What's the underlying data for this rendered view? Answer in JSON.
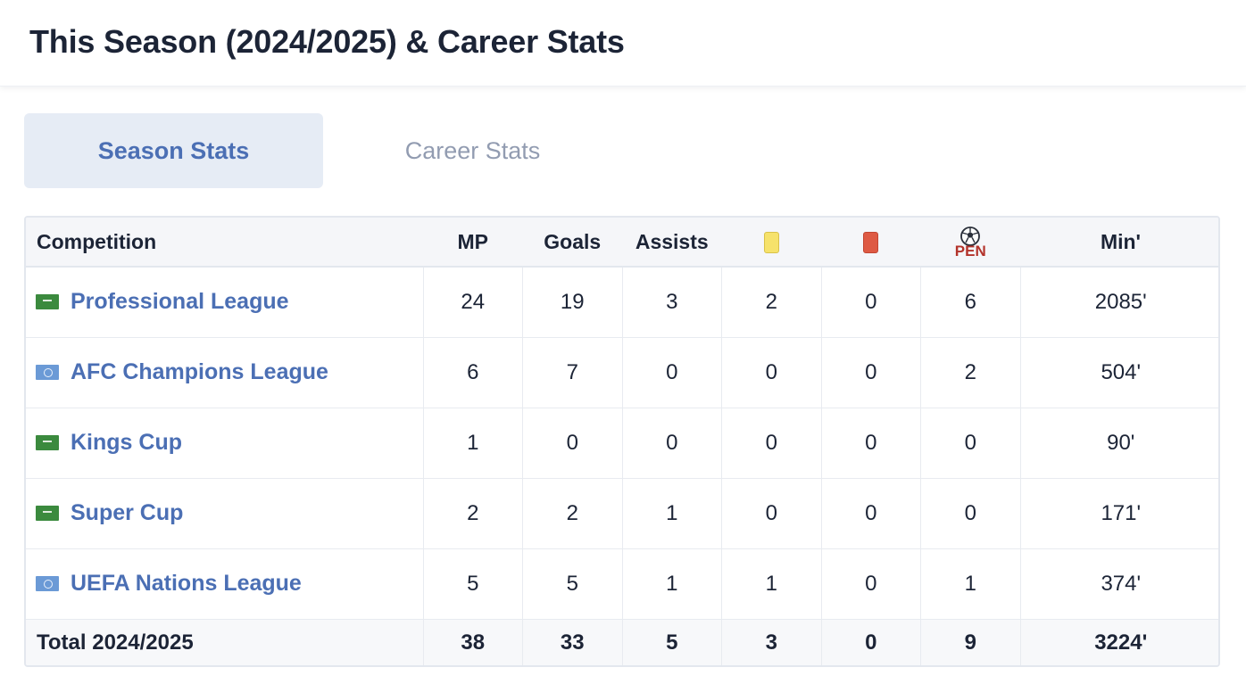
{
  "header": {
    "title": "This Season (2024/2025) & Career Stats"
  },
  "tabs": [
    {
      "label": "Season Stats",
      "active": true
    },
    {
      "label": "Career Stats",
      "active": false
    }
  ],
  "table": {
    "columns": {
      "competition": "Competition",
      "mp": "MP",
      "goals": "Goals",
      "assists": "Assists",
      "yellow_icon": "yellow-card-icon",
      "red_icon": "red-card-icon",
      "pen_icon": "penalty-ball-icon",
      "pen_label": "PEN",
      "minutes": "Min'"
    },
    "rows": [
      {
        "flag": "saudi-flag-icon",
        "competition": "Professional League",
        "mp": "24",
        "goals": "19",
        "assists": "3",
        "yellow": "2",
        "red": "0",
        "pen": "6",
        "minutes": "2085'"
      },
      {
        "flag": "un-flag-icon",
        "competition": "AFC Champions League",
        "mp": "6",
        "goals": "7",
        "assists": "0",
        "yellow": "0",
        "red": "0",
        "pen": "2",
        "minutes": "504'"
      },
      {
        "flag": "saudi-flag-icon",
        "competition": "Kings Cup",
        "mp": "1",
        "goals": "0",
        "assists": "0",
        "yellow": "0",
        "red": "0",
        "pen": "0",
        "minutes": "90'"
      },
      {
        "flag": "saudi-flag-icon",
        "competition": "Super Cup",
        "mp": "2",
        "goals": "2",
        "assists": "1",
        "yellow": "0",
        "red": "0",
        "pen": "0",
        "minutes": "171'"
      },
      {
        "flag": "un-flag-icon",
        "competition": "UEFA Nations League",
        "mp": "5",
        "goals": "5",
        "assists": "1",
        "yellow": "1",
        "red": "0",
        "pen": "1",
        "minutes": "374'"
      }
    ],
    "total": {
      "label": "Total 2024/2025",
      "mp": "38",
      "goals": "33",
      "assists": "5",
      "yellow": "3",
      "red": "0",
      "pen": "9",
      "minutes": "3224'"
    }
  },
  "colors": {
    "link": "#4b6fb4",
    "text": "#1c2436",
    "yellow_card": "#f6e26b",
    "red_card": "#de5a44",
    "pen": "#b3332b"
  }
}
